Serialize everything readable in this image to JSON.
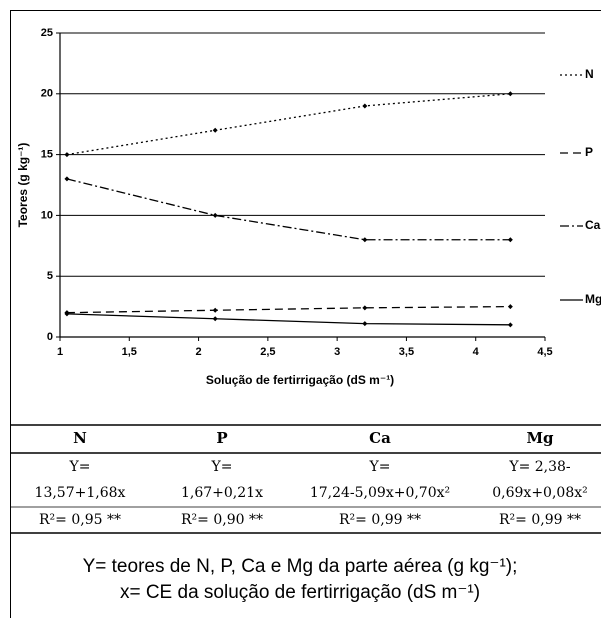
{
  "chart_data": {
    "type": "line",
    "x": [
      1.05,
      2.12,
      3.2,
      4.25
    ],
    "series": [
      {
        "name": "N",
        "color": "#000000",
        "line_style": "dotted",
        "values": [
          15,
          17,
          19,
          20
        ]
      },
      {
        "name": "P",
        "color": "#000000",
        "line_style": "dashed",
        "values": [
          2,
          2.2,
          2.4,
          2.5
        ]
      },
      {
        "name": "Ca",
        "color": "#000000",
        "line_style": "dashdot",
        "values": [
          13,
          10,
          8,
          8
        ]
      },
      {
        "name": "Mg",
        "color": "#000000",
        "line_style": "solid",
        "values": [
          1.9,
          1.5,
          1.1,
          1.0
        ]
      }
    ],
    "xlabel": "Solução de fertirrigação (dS m⁻¹)",
    "ylabel": "Teores (g kg⁻¹)",
    "xlim": [
      1,
      4.5
    ],
    "xticks": [
      1,
      {
        "value": 1.5,
        "label": "1,5"
      },
      2,
      {
        "value": 2.5,
        "label": "2,5"
      },
      3,
      {
        "value": 3.5,
        "label": "3,5"
      },
      4,
      {
        "value": 4.5,
        "label": "4,5"
      }
    ],
    "ylim": [
      0,
      25
    ],
    "yticks": [
      0,
      5,
      10,
      15,
      20,
      25
    ],
    "grid": true,
    "legend": "right"
  },
  "table": {
    "header": [
      "N",
      "P",
      "Ca",
      "Mg"
    ],
    "rows": [
      [
        "Y=",
        "Y=",
        "Y=",
        "Y= 2,38-"
      ],
      [
        "13,57+1,68x",
        "1,67+0,21x",
        "17,24-5,09x+0,70x²",
        "0,69x+0,08x²"
      ],
      [
        "R²= 0,95 **",
        "R²= 0,90 **",
        "R²= 0,99 **",
        "R²= 0,99 **"
      ]
    ]
  },
  "notes": [
    "Y= teores de N, P, Ca e Mg da parte aérea (g kg⁻¹);",
    "x= CE da solução de fertirrigação (dS m⁻¹)"
  ]
}
